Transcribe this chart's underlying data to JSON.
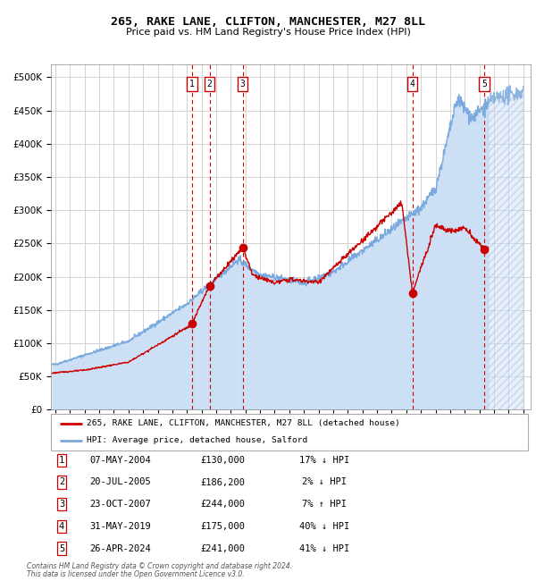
{
  "title": "265, RAKE LANE, CLIFTON, MANCHESTER, M27 8LL",
  "subtitle": "Price paid vs. HM Land Registry's House Price Index (HPI)",
  "legend_line1": "265, RAKE LANE, CLIFTON, MANCHESTER, M27 8LL (detached house)",
  "legend_line2": "HPI: Average price, detached house, Salford",
  "footer1": "Contains HM Land Registry data © Crown copyright and database right 2024.",
  "footer2": "This data is licensed under the Open Government Licence v3.0.",
  "sale_points": [
    {
      "num": 1,
      "date": "07-MAY-2004",
      "price": 130000,
      "rel": "17% ↓ HPI",
      "x_year": 2004.35
    },
    {
      "num": 2,
      "date": "20-JUL-2005",
      "price": 186200,
      "rel": "2% ↓ HPI",
      "x_year": 2005.55
    },
    {
      "num": 3,
      "date": "23-OCT-2007",
      "price": 244000,
      "rel": "7% ↑ HPI",
      "x_year": 2007.81
    },
    {
      "num": 4,
      "date": "31-MAY-2019",
      "price": 175000,
      "rel": "40% ↓ HPI",
      "x_year": 2019.41
    },
    {
      "num": 5,
      "date": "26-APR-2024",
      "price": 241000,
      "rel": "41% ↓ HPI",
      "x_year": 2024.32
    }
  ],
  "hpi_color": "#7aaadd",
  "sale_color": "#cc0000",
  "dot_color": "#cc0000",
  "vline_color": "#cc0000",
  "fill_color": "#ccdff5",
  "grid_color": "#cccccc",
  "ylim": [
    0,
    520000
  ],
  "xlim_start": 1994.7,
  "xlim_end": 2027.5,
  "future_start": 2024.6,
  "hpi_seed": 42,
  "sale_seed": 123
}
